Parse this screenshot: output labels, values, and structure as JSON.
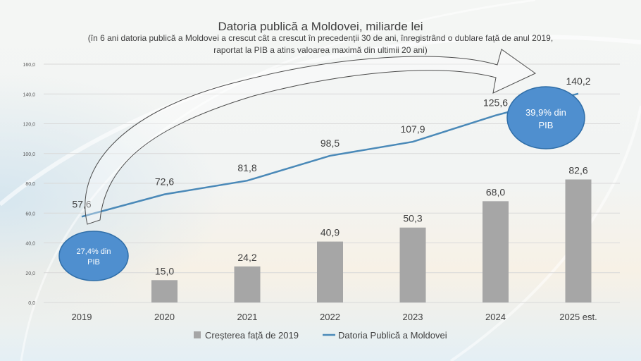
{
  "chart_data": {
    "type": "bar",
    "title": "Datoria publică a Moldovei, miliarde lei",
    "subtitle_line1": "(în 6 ani datoria publică a Moldovei a crescut cât a crescut în precedenții 30 de ani, înregistrând o dublare față de anul 2019,",
    "subtitle_line2": "raportat la PIB a atins valoarea maximă din ultimii 20 ani)",
    "categories": [
      "2019",
      "2020",
      "2021",
      "2022",
      "2023",
      "2024",
      "2025 est."
    ],
    "ylim": [
      0,
      160
    ],
    "yticks": [
      "0,0",
      "20,0",
      "40,0",
      "60,0",
      "80,0",
      "100,0",
      "120,0",
      "140,0",
      "160,0"
    ],
    "grid": true,
    "legend_position": "bottom",
    "series": [
      {
        "name": "Creșterea față de 2019",
        "type": "bar",
        "color": "#a6a6a6",
        "values": [
          null,
          15.0,
          24.2,
          40.9,
          50.3,
          68.0,
          82.6
        ],
        "labels": [
          "",
          "15,0",
          "24,2",
          "40,9",
          "50,3",
          "68,0",
          "82,6"
        ]
      },
      {
        "name": "Datoria Publică a Moldovei",
        "type": "line",
        "color": "#4a89b8",
        "values": [
          57.6,
          72.6,
          81.8,
          98.5,
          107.9,
          125.6,
          140.2
        ],
        "labels": [
          "57,6",
          "72,6",
          "81,8",
          "98,5",
          "107,9",
          "125,6",
          "140,2"
        ]
      }
    ],
    "annotations": [
      {
        "text_line1": "27,4% din",
        "text_line2": "PIB",
        "color": "#4f8fcf"
      },
      {
        "text_line1": "39,9% din",
        "text_line2": "PIB",
        "color": "#4f8fcf"
      }
    ]
  }
}
